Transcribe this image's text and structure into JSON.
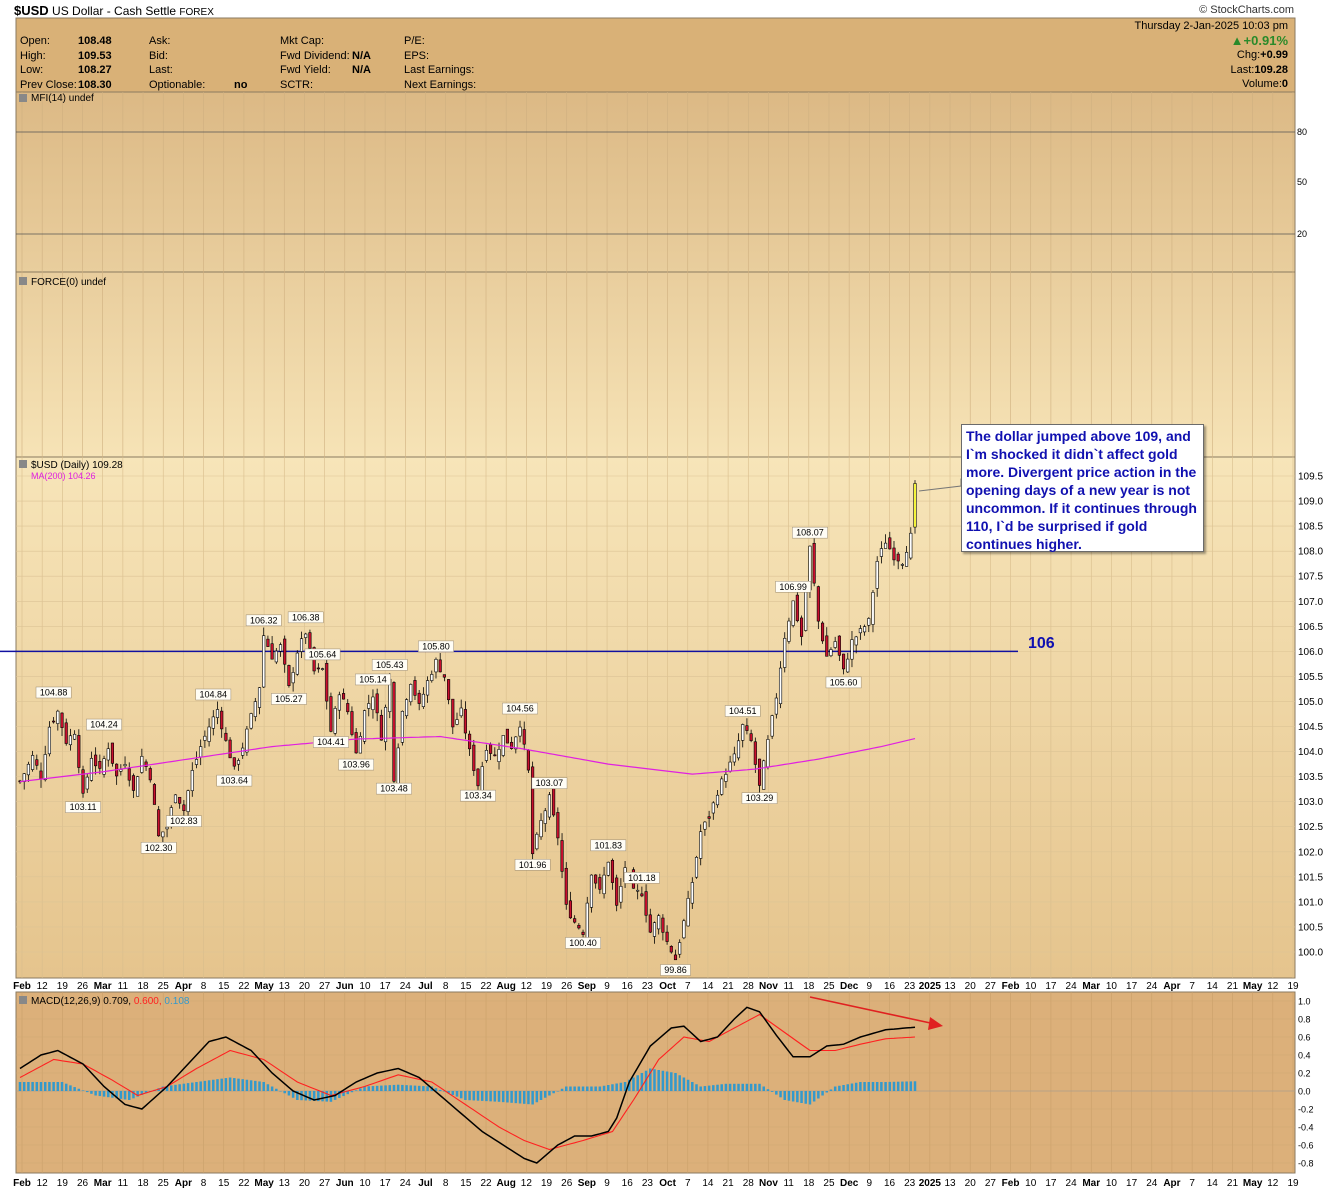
{
  "header": {
    "symbol": "$USD",
    "name": "US Dollar - Cash Settle",
    "exchange": "FOREX",
    "credit": "© StockCharts.com",
    "date": "Thursday  2-Jan-2025  10:03 pm",
    "change_pct": "+0.91%",
    "quote_left": [
      {
        "k": "Open:",
        "v": "108.48"
      },
      {
        "k": "High:",
        "v": "109.53"
      },
      {
        "k": "Low:",
        "v": "108.27"
      },
      {
        "k": "Prev Close:",
        "v": "108.30"
      }
    ],
    "quote_mid": [
      {
        "k": "Ask:",
        "v": ""
      },
      {
        "k": "Bid:",
        "v": ""
      },
      {
        "k": "Last:",
        "v": ""
      },
      {
        "k": "Optionable:",
        "v": "no"
      }
    ],
    "quote_mid2": [
      {
        "k": "Mkt Cap:",
        "v": ""
      },
      {
        "k": "Fwd Dividend:",
        "v": "N/A"
      },
      {
        "k": "Fwd Yield:",
        "v": "N/A"
      },
      {
        "k": "SCTR:",
        "v": ""
      }
    ],
    "quote_mid3": [
      {
        "k": "P/E:",
        "v": ""
      },
      {
        "k": "EPS:",
        "v": ""
      },
      {
        "k": "Last Earnings:",
        "v": ""
      },
      {
        "k": "Next Earnings:",
        "v": ""
      }
    ],
    "quote_right": [
      {
        "k": "Chg:",
        "v": "+0.99"
      },
      {
        "k": "Last:",
        "v": "109.28"
      },
      {
        "k": "Volume:",
        "v": "0"
      }
    ]
  },
  "panels": {
    "mfi_label": "MFI(14) undef",
    "mfi_ticks": [
      "80",
      "50",
      "20"
    ],
    "force_label": "FORCE(0) undef",
    "price_label": "$USD (Daily) 109.28",
    "ma_label": "MA(200) 104.26",
    "macd_label": "MACD(12,26,9) 0.709, 0.600, 0.108",
    "macd_label_main": "MACD(12,26,9) 0.709,",
    "macd_label_signal": "0.600,",
    "macd_label_hist": "0.108"
  },
  "annotation": {
    "note": "The dollar jumped above 109, and I`m shocked it didn`t affect gold more. Divergent price action in the opening days of a new year is not uncommon. If it continues through 110, I`d be surprised if gold continues higher.",
    "level_label": "106"
  },
  "colors": {
    "panel_bg": "#e8c890",
    "price": "#000000",
    "up_candle": "#ffffff",
    "down_candle": "#c8102e",
    "ma": "#e020e0",
    "macd": "#000000",
    "signal": "#ff2020",
    "hist": "#3399cc",
    "hline": "#1010a0",
    "arrow": "#e02020"
  },
  "chart_data": {
    "type": "line",
    "title": "$USD (Daily) 109.28",
    "x_labels": [
      "Feb",
      "12",
      "19",
      "26",
      "Mar",
      "11",
      "18",
      "25",
      "Apr",
      "8",
      "15",
      "22",
      "May",
      "13",
      "20",
      "27",
      "Jun",
      "10",
      "17",
      "24",
      "Jul",
      "8",
      "15",
      "22",
      "Aug",
      "12",
      "19",
      "26",
      "Sep",
      "9",
      "16",
      "23",
      "Oct",
      "7",
      "14",
      "21",
      "28",
      "Nov",
      "11",
      "18",
      "25",
      "Dec",
      "9",
      "16",
      "23",
      "2025",
      "13",
      "20",
      "27",
      "Feb",
      "10",
      "17",
      "24",
      "Mar",
      "10",
      "17",
      "24",
      "Apr",
      "7",
      "14",
      "21",
      "May",
      "12",
      "19"
    ],
    "price_ticks": [
      "100.0",
      "100.5",
      "101.0",
      "101.5",
      "102.0",
      "102.5",
      "103.0",
      "103.5",
      "104.0",
      "104.5",
      "105.0",
      "105.5",
      "106.0",
      "106.5",
      "107.0",
      "107.5",
      "108.0",
      "108.5",
      "109.0",
      "109.5"
    ],
    "ylim": [
      99.6,
      109.9
    ],
    "hline": 106,
    "price_path": [
      [
        0,
        103.4
      ],
      [
        3,
        103.9
      ],
      [
        5,
        103.5
      ],
      [
        7,
        104.5
      ],
      [
        9,
        104.8
      ],
      [
        11,
        104.2
      ],
      [
        13,
        104.4
      ],
      [
        15,
        103.1
      ],
      [
        17,
        103.9
      ],
      [
        19,
        103.6
      ],
      [
        21,
        104.1
      ],
      [
        23,
        103.5
      ],
      [
        25,
        103.8
      ],
      [
        27,
        103.2
      ],
      [
        29,
        103.9
      ],
      [
        31,
        103.5
      ],
      [
        33,
        102.3
      ],
      [
        35,
        102.5
      ],
      [
        37,
        103.2
      ],
      [
        39,
        102.83
      ],
      [
        41,
        103.6
      ],
      [
        43,
        104.1
      ],
      [
        45,
        104.5
      ],
      [
        47,
        104.84
      ],
      [
        49,
        104.2
      ],
      [
        51,
        103.64
      ],
      [
        53,
        104.1
      ],
      [
        55,
        104.7
      ],
      [
        57,
        105.3
      ],
      [
        58,
        106.32
      ],
      [
        60,
        105.9
      ],
      [
        62,
        106.1
      ],
      [
        64,
        105.27
      ],
      [
        66,
        106.0
      ],
      [
        68,
        106.38
      ],
      [
        70,
        105.6
      ],
      [
        72,
        105.64
      ],
      [
        74,
        104.41
      ],
      [
        76,
        105.2
      ],
      [
        78,
        104.8
      ],
      [
        80,
        103.96
      ],
      [
        82,
        104.8
      ],
      [
        84,
        105.14
      ],
      [
        86,
        104.3
      ],
      [
        88,
        105.43
      ],
      [
        89,
        103.48
      ],
      [
        91,
        104.8
      ],
      [
        93,
        105.4
      ],
      [
        95,
        104.9
      ],
      [
        97,
        105.4
      ],
      [
        99,
        105.8
      ],
      [
        101,
        105.5
      ],
      [
        103,
        104.5
      ],
      [
        105,
        104.8
      ],
      [
        107,
        104.0
      ],
      [
        109,
        103.34
      ],
      [
        111,
        104.1
      ],
      [
        113,
        103.9
      ],
      [
        115,
        104.3
      ],
      [
        117,
        104.1
      ],
      [
        119,
        104.56
      ],
      [
        121,
        103.6
      ],
      [
        122,
        101.96
      ],
      [
        124,
        102.6
      ],
      [
        126,
        103.07
      ],
      [
        128,
        102.3
      ],
      [
        130,
        100.9
      ],
      [
        132,
        100.6
      ],
      [
        134,
        100.4
      ],
      [
        136,
        101.6
      ],
      [
        138,
        101.2
      ],
      [
        140,
        101.83
      ],
      [
        142,
        100.9
      ],
      [
        144,
        101.7
      ],
      [
        146,
        101.2
      ],
      [
        148,
        101.18
      ],
      [
        150,
        100.4
      ],
      [
        152,
        100.7
      ],
      [
        154,
        100.2
      ],
      [
        156,
        99.86
      ],
      [
        158,
        100.6
      ],
      [
        160,
        101.4
      ],
      [
        162,
        102.4
      ],
      [
        164,
        102.7
      ],
      [
        166,
        103.2
      ],
      [
        168,
        103.6
      ],
      [
        170,
        103.9
      ],
      [
        172,
        104.51
      ],
      [
        174,
        104.2
      ],
      [
        176,
        103.29
      ],
      [
        178,
        104.2
      ],
      [
        180,
        105.1
      ],
      [
        182,
        106.3
      ],
      [
        184,
        106.99
      ],
      [
        186,
        106.3
      ],
      [
        188,
        108.07
      ],
      [
        190,
        106.6
      ],
      [
        192,
        105.9
      ],
      [
        194,
        106.2
      ],
      [
        196,
        105.6
      ],
      [
        198,
        106.2
      ],
      [
        200,
        106.4
      ],
      [
        202,
        106.6
      ],
      [
        204,
        107.8
      ],
      [
        206,
        108.2
      ],
      [
        208,
        107.9
      ],
      [
        210,
        107.8
      ],
      [
        212,
        108.3
      ],
      [
        213,
        109.28
      ]
    ],
    "price_labels": [
      {
        "i": 8,
        "v": "104.88",
        "pos": "above"
      },
      {
        "i": 15,
        "v": "103.11",
        "pos": "below"
      },
      {
        "i": 20,
        "v": "104.24",
        "pos": "above"
      },
      {
        "i": 33,
        "v": "102.30",
        "pos": "below"
      },
      {
        "i": 39,
        "v": "102.83",
        "pos": "below"
      },
      {
        "i": 46,
        "v": "104.84",
        "pos": "above"
      },
      {
        "i": 51,
        "v": "103.64",
        "pos": "below"
      },
      {
        "i": 58,
        "v": "106.32",
        "pos": "above"
      },
      {
        "i": 64,
        "v": "105.27",
        "pos": "below"
      },
      {
        "i": 68,
        "v": "106.38",
        "pos": "above"
      },
      {
        "i": 72,
        "v": "105.64",
        "pos": "above"
      },
      {
        "i": 74,
        "v": "104.41",
        "pos": "below"
      },
      {
        "i": 80,
        "v": "103.96",
        "pos": "below"
      },
      {
        "i": 84,
        "v": "105.14",
        "pos": "above"
      },
      {
        "i": 88,
        "v": "105.43",
        "pos": "above"
      },
      {
        "i": 89,
        "v": "103.48",
        "pos": "below"
      },
      {
        "i": 99,
        "v": "105.80",
        "pos": "above"
      },
      {
        "i": 109,
        "v": "103.34",
        "pos": "below"
      },
      {
        "i": 119,
        "v": "104.56",
        "pos": "above"
      },
      {
        "i": 122,
        "v": "101.96",
        "pos": "below"
      },
      {
        "i": 126,
        "v": "103.07",
        "pos": "above"
      },
      {
        "i": 134,
        "v": "100.40",
        "pos": "below"
      },
      {
        "i": 140,
        "v": "101.83",
        "pos": "above"
      },
      {
        "i": 148,
        "v": "101.18",
        "pos": "above"
      },
      {
        "i": 156,
        "v": "99.86",
        "pos": "below"
      },
      {
        "i": 172,
        "v": "104.51",
        "pos": "above"
      },
      {
        "i": 176,
        "v": "103.29",
        "pos": "below"
      },
      {
        "i": 184,
        "v": "106.99",
        "pos": "above"
      },
      {
        "i": 188,
        "v": "108.07",
        "pos": "above"
      },
      {
        "i": 196,
        "v": "105.60",
        "pos": "below"
      }
    ],
    "ma_path": [
      [
        0,
        103.4
      ],
      [
        20,
        103.6
      ],
      [
        40,
        103.85
      ],
      [
        60,
        104.1
      ],
      [
        80,
        104.25
      ],
      [
        100,
        104.3
      ],
      [
        120,
        104.05
      ],
      [
        140,
        103.75
      ],
      [
        160,
        103.55
      ],
      [
        175,
        103.65
      ],
      [
        190,
        103.85
      ],
      [
        205,
        104.1
      ],
      [
        213,
        104.26
      ]
    ],
    "macd_ticks": [
      "1.0",
      "0.8",
      "0.6",
      "0.4",
      "0.2",
      "0.0",
      "-0.2",
      "-0.4",
      "-0.6",
      "-0.8"
    ],
    "macd_ylim": [
      -0.85,
      1.05
    ],
    "macd": [
      [
        0,
        0.25
      ],
      [
        5,
        0.4
      ],
      [
        9,
        0.45
      ],
      [
        15,
        0.3
      ],
      [
        20,
        0.05
      ],
      [
        25,
        -0.15
      ],
      [
        29,
        -0.2
      ],
      [
        35,
        0.05
      ],
      [
        40,
        0.3
      ],
      [
        45,
        0.55
      ],
      [
        49,
        0.6
      ],
      [
        55,
        0.45
      ],
      [
        60,
        0.2
      ],
      [
        65,
        0.0
      ],
      [
        70,
        -0.1
      ],
      [
        75,
        -0.05
      ],
      [
        80,
        0.1
      ],
      [
        85,
        0.2
      ],
      [
        90,
        0.25
      ],
      [
        95,
        0.15
      ],
      [
        100,
        -0.05
      ],
      [
        105,
        -0.25
      ],
      [
        110,
        -0.45
      ],
      [
        115,
        -0.6
      ],
      [
        120,
        -0.75
      ],
      [
        123,
        -0.8
      ],
      [
        128,
        -0.6
      ],
      [
        132,
        -0.5
      ],
      [
        136,
        -0.5
      ],
      [
        140,
        -0.45
      ],
      [
        142,
        -0.3
      ],
      [
        145,
        0.1
      ],
      [
        150,
        0.5
      ],
      [
        155,
        0.7
      ],
      [
        158,
        0.72
      ],
      [
        162,
        0.55
      ],
      [
        166,
        0.6
      ],
      [
        170,
        0.8
      ],
      [
        173,
        0.93
      ],
      [
        176,
        0.88
      ],
      [
        180,
        0.62
      ],
      [
        184,
        0.38
      ],
      [
        188,
        0.38
      ],
      [
        192,
        0.5
      ],
      [
        196,
        0.52
      ],
      [
        200,
        0.6
      ],
      [
        206,
        0.68
      ],
      [
        213,
        0.709
      ]
    ],
    "signal": [
      [
        0,
        0.15
      ],
      [
        8,
        0.35
      ],
      [
        15,
        0.3
      ],
      [
        22,
        0.12
      ],
      [
        28,
        -0.05
      ],
      [
        35,
        0.05
      ],
      [
        42,
        0.25
      ],
      [
        50,
        0.45
      ],
      [
        58,
        0.35
      ],
      [
        66,
        0.1
      ],
      [
        74,
        -0.05
      ],
      [
        82,
        0.05
      ],
      [
        90,
        0.18
      ],
      [
        98,
        0.1
      ],
      [
        106,
        -0.15
      ],
      [
        114,
        -0.4
      ],
      [
        120,
        -0.55
      ],
      [
        126,
        -0.65
      ],
      [
        134,
        -0.55
      ],
      [
        141,
        -0.45
      ],
      [
        146,
        -0.1
      ],
      [
        152,
        0.35
      ],
      [
        158,
        0.6
      ],
      [
        164,
        0.55
      ],
      [
        170,
        0.7
      ],
      [
        176,
        0.85
      ],
      [
        182,
        0.65
      ],
      [
        188,
        0.45
      ],
      [
        194,
        0.45
      ],
      [
        200,
        0.52
      ],
      [
        206,
        0.58
      ],
      [
        213,
        0.6
      ]
    ],
    "hist": [
      [
        0,
        0.1
      ],
      [
        10,
        0.1
      ],
      [
        18,
        -0.05
      ],
      [
        26,
        -0.1
      ],
      [
        34,
        0.05
      ],
      [
        42,
        0.1
      ],
      [
        50,
        0.15
      ],
      [
        58,
        0.1
      ],
      [
        66,
        -0.1
      ],
      [
        74,
        -0.12
      ],
      [
        82,
        0.05
      ],
      [
        90,
        0.07
      ],
      [
        98,
        0.05
      ],
      [
        106,
        -0.1
      ],
      [
        114,
        -0.12
      ],
      [
        122,
        -0.15
      ],
      [
        130,
        0.05
      ],
      [
        138,
        0.05
      ],
      [
        144,
        0.1
      ],
      [
        150,
        0.25
      ],
      [
        156,
        0.2
      ],
      [
        162,
        0.05
      ],
      [
        168,
        0.08
      ],
      [
        176,
        0.08
      ],
      [
        182,
        -0.1
      ],
      [
        188,
        -0.15
      ],
      [
        194,
        0.05
      ],
      [
        200,
        0.1
      ],
      [
        206,
        0.1
      ],
      [
        213,
        0.108
      ]
    ]
  }
}
